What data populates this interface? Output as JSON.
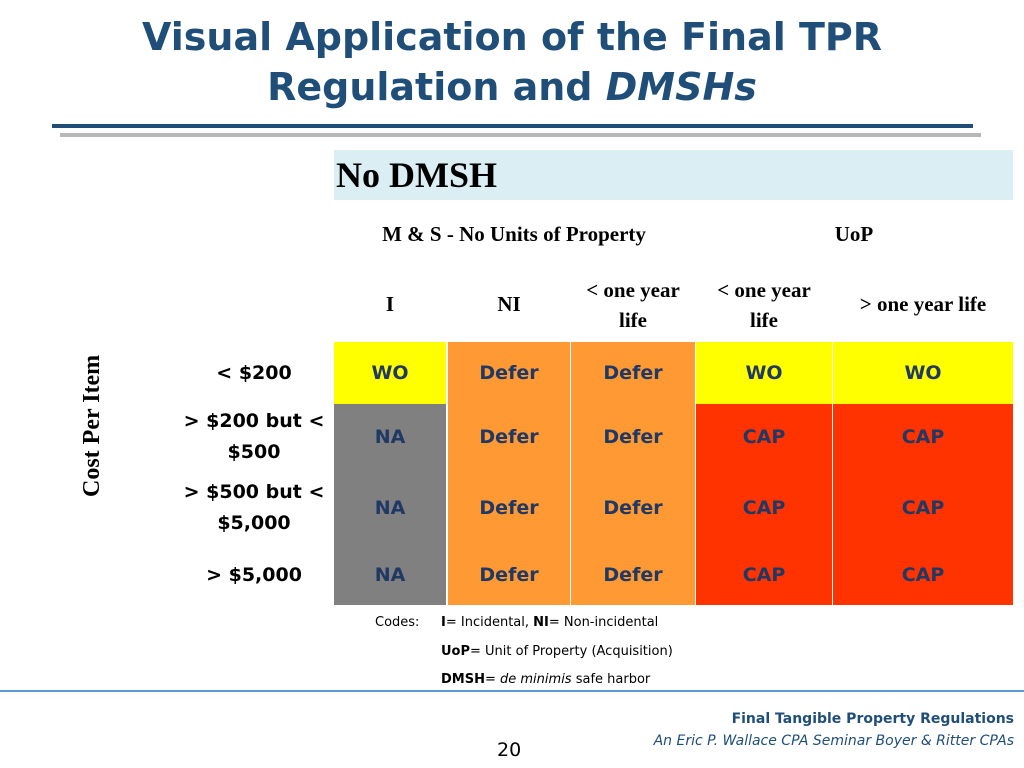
{
  "title": {
    "line1": "Visual Application of the Final TPR",
    "line2_plain": "Regulation and ",
    "line2_italic": "DMSHs"
  },
  "banner": "No DMSH",
  "group_headers": {
    "ms": "M & S - No Units of Property",
    "uop": "UoP"
  },
  "columns": {
    "i": "I",
    "ni": "NI",
    "lt1a_line1": "< one year",
    "lt1a_line2": "life",
    "lt1b_line1": "< one year",
    "lt1b_line2": "life",
    "gt1": "> one year life"
  },
  "side_label": "Cost Per Item",
  "rows": [
    {
      "label_line1": "< $200",
      "label_line2": "",
      "cells": [
        "WO",
        "Defer",
        "Defer",
        "WO",
        "WO"
      ]
    },
    {
      "label_line1": "> $200 but <",
      "label_line2": "$500",
      "cells": [
        "NA",
        "Defer",
        "Defer",
        "CAP",
        "CAP"
      ]
    },
    {
      "label_line1": "> $500 but <",
      "label_line2": "$5,000",
      "cells": [
        "NA",
        "Defer",
        "Defer",
        "CAP",
        "CAP"
      ]
    },
    {
      "label_line1": "> $5,000",
      "label_line2": "",
      "cells": [
        "NA",
        "Defer",
        "Defer",
        "CAP",
        "CAP"
      ]
    }
  ],
  "colors": {
    "yellow": "#ffff00",
    "orange": "#ff9933",
    "gray": "#808080",
    "red": "#ff3300",
    "banner": "#dbeef4",
    "title": "#1f4e79"
  },
  "codes": {
    "label": "Codes:",
    "i_key": "I",
    "i_def": "= Incidental, ",
    "ni_key": "NI",
    "ni_def": "= Non-incidental",
    "uop_key": "UoP",
    "uop_def": "= Unit of Property (Acquisition)",
    "dmsh_key": "DMSH",
    "dmsh_eq": "= ",
    "dmsh_italic": "de minimis",
    "dmsh_rest": " safe harbor"
  },
  "footer": {
    "line1": "Final Tangible Property Regulations",
    "line2": "An Eric P. Wallace CPA Seminar Boyer & Ritter CPAs",
    "page": "20"
  }
}
